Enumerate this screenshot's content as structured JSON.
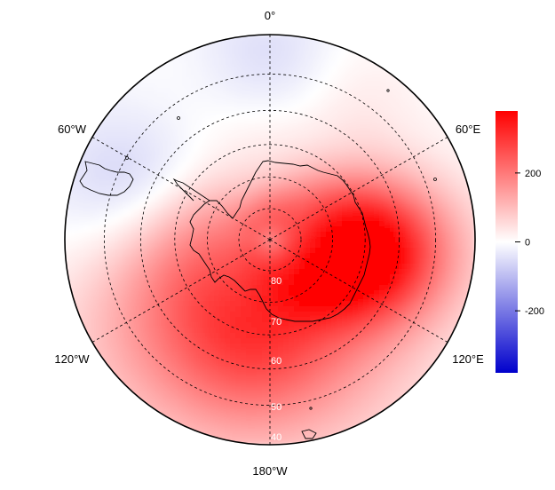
{
  "map": {
    "projection": "south-polar-stereographic",
    "outer_boundary_lat": -30,
    "graticule": {
      "lat_circles": [
        -40,
        -50,
        -60,
        -70,
        -80
      ],
      "meridians": [
        0,
        60,
        120,
        180,
        -60,
        -120
      ],
      "style": "dashed"
    },
    "lon_labels": {
      "north": "0°",
      "ne": "60°E",
      "se": "120°E",
      "south": "180°W",
      "sw": "120°W",
      "nw": "60°W"
    },
    "lat_labels": [
      "80",
      "70",
      "60",
      "50",
      "40"
    ],
    "field": {
      "variable_range": [
        -380,
        380
      ],
      "anomaly_centers": [
        {
          "lon": 95,
          "lat": -58,
          "value": 380,
          "sigma_deg": 16
        },
        {
          "lon": 150,
          "lat": -58,
          "value": 150,
          "sigma_deg": 22
        },
        {
          "lon": -130,
          "lat": -55,
          "value": 170,
          "sigma_deg": 22
        },
        {
          "lon": -170,
          "lat": -50,
          "value": 120,
          "sigma_deg": 18
        },
        {
          "lon": -95,
          "lat": -62,
          "value": 60,
          "sigma_deg": 14
        },
        {
          "lon": -70,
          "lat": -45,
          "value": -70,
          "sigma_deg": 16
        },
        {
          "lon": 0,
          "lat": -38,
          "value": -60,
          "sigma_deg": 14
        },
        {
          "lon": 30,
          "lat": -45,
          "value": 40,
          "sigma_deg": 14
        },
        {
          "lon": -20,
          "lat": -60,
          "value": 40,
          "sigma_deg": 16
        }
      ]
    },
    "colors": {
      "negative": "#0000cc",
      "zero": "#ffffff",
      "positive": "#ff0000",
      "coast": "#000000",
      "grid": "#000000"
    }
  },
  "colorbar": {
    "min": -380,
    "max": 380,
    "ticks": [
      {
        "value": 200,
        "label": "200"
      },
      {
        "value": 0,
        "label": "0"
      },
      {
        "value": -200,
        "label": "-200"
      }
    ]
  }
}
